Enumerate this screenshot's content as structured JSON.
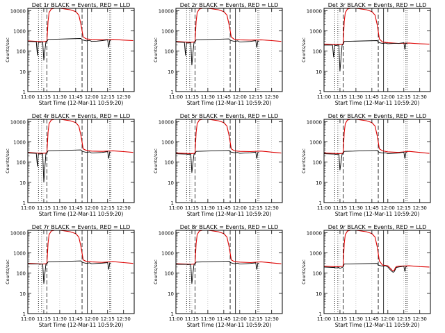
{
  "figure": {
    "common": {
      "title_mid": "BLACK = Events, RED = LLD",
      "xlabel": "Start Time (12-Mar-11 10:59:20)",
      "ylabel": "Counts/sec",
      "x_ticks": [
        "11:00",
        "11:15",
        "11:30",
        "11:45",
        "12:00",
        "12:15",
        "12:30"
      ],
      "x_tick_minutes": [
        0,
        15,
        30,
        45,
        60,
        75,
        90
      ],
      "y_ticks": [
        "1",
        "10",
        "100",
        "1000",
        "10000"
      ],
      "y_tick_values": [
        1,
        10,
        100,
        1000,
        10000
      ],
      "xlim_minutes": [
        0,
        100
      ],
      "ylim": [
        1,
        13000
      ],
      "y_scale": "log",
      "vlines": [
        {
          "minute": 10,
          "style": "dotted"
        },
        {
          "minute": 13,
          "style": "dotted"
        },
        {
          "minute": 18,
          "style": "dashed"
        },
        {
          "minute": 51,
          "style": "dashed"
        },
        {
          "minute": 56,
          "style": "solid"
        },
        {
          "minute": 77,
          "style": "dotted"
        },
        {
          "minute": 78,
          "style": "dotted"
        }
      ],
      "colors": {
        "events": "#000000",
        "lld": "#dd0000",
        "frame": "#000000"
      }
    }
  },
  "chart_data": [
    {
      "type": "line",
      "detector": "Det 1r",
      "title": "Det 1r BLACK = Events, RED = LLD",
      "series": [
        {
          "name": "LLD",
          "color": "#dd0000",
          "x": [
            0,
            8,
            14,
            17,
            18,
            19,
            20,
            22,
            25,
            30,
            33,
            35,
            40,
            45,
            48,
            50,
            52,
            55,
            60,
            70,
            80,
            90,
            99
          ],
          "y": [
            320,
            300,
            290,
            300,
            320,
            3000,
            8000,
            12000,
            13000,
            13000,
            12500,
            12000,
            11000,
            9000,
            6000,
            2000,
            500,
            400,
            380,
            360,
            380,
            350,
            330
          ]
        },
        {
          "name": "Events",
          "color": "#000000",
          "x": [
            0,
            8,
            9,
            10,
            11,
            14,
            15,
            17,
            18,
            19,
            50,
            51,
            52,
            55,
            58,
            60,
            65,
            70,
            75,
            76,
            77,
            78
          ],
          "y": [
            300,
            290,
            60,
            280,
            270,
            280,
            35,
            290,
            300,
            380,
            420,
            370,
            350,
            320,
            340,
            300,
            310,
            330,
            360,
            150,
            340,
            330
          ]
        }
      ]
    },
    {
      "type": "line",
      "detector": "Det 2r",
      "title": "Det 2r BLACK = Events, RED = LLD",
      "series": [
        {
          "name": "LLD",
          "color": "#dd0000",
          "x": [
            0,
            8,
            14,
            17,
            18,
            19,
            20,
            22,
            25,
            30,
            33,
            35,
            40,
            45,
            48,
            50,
            52,
            55,
            60,
            70,
            80,
            90,
            99
          ],
          "y": [
            300,
            280,
            270,
            280,
            300,
            3000,
            8000,
            12000,
            13000,
            13000,
            12500,
            12000,
            11000,
            9000,
            6000,
            2000,
            500,
            380,
            360,
            350,
            360,
            330,
            300
          ]
        },
        {
          "name": "Events",
          "color": "#000000",
          "x": [
            0,
            8,
            9,
            10,
            11,
            14,
            15,
            17,
            18,
            19,
            50,
            51,
            52,
            55,
            58,
            60,
            65,
            70,
            75,
            76,
            77,
            78
          ],
          "y": [
            280,
            270,
            60,
            260,
            250,
            260,
            20,
            270,
            280,
            360,
            400,
            350,
            330,
            300,
            320,
            280,
            290,
            300,
            330,
            150,
            320,
            300
          ]
        }
      ]
    },
    {
      "type": "line",
      "detector": "Det 3r",
      "title": "Det 3r BLACK = Events, RED = LLD",
      "series": [
        {
          "name": "LLD",
          "color": "#dd0000",
          "x": [
            0,
            8,
            14,
            17,
            18,
            19,
            20,
            22,
            25,
            30,
            33,
            35,
            40,
            45,
            48,
            50,
            52,
            55,
            60,
            70,
            80,
            90,
            99
          ],
          "y": [
            220,
            210,
            210,
            215,
            230,
            3000,
            8000,
            12000,
            13000,
            13000,
            12500,
            12000,
            11000,
            9000,
            6000,
            2000,
            400,
            280,
            260,
            240,
            250,
            230,
            220
          ]
        },
        {
          "name": "Events",
          "color": "#000000",
          "x": [
            0,
            8,
            9,
            10,
            11,
            14,
            15,
            17,
            18,
            19,
            50,
            51,
            52,
            55,
            58,
            60,
            65,
            70,
            75,
            76,
            77,
            78
          ],
          "y": [
            200,
            200,
            50,
            200,
            190,
            200,
            10,
            200,
            210,
            300,
            330,
            280,
            260,
            240,
            250,
            230,
            240,
            240,
            260,
            120,
            250,
            240
          ]
        }
      ]
    },
    {
      "type": "line",
      "detector": "Det 4r",
      "title": "Det 4r BLACK = Events, RED = LLD",
      "series": [
        {
          "name": "LLD",
          "color": "#dd0000",
          "x": [
            0,
            8,
            14,
            17,
            18,
            19,
            20,
            22,
            25,
            30,
            33,
            35,
            40,
            45,
            48,
            50,
            52,
            55,
            60,
            70,
            80,
            90,
            99
          ],
          "y": [
            300,
            280,
            270,
            280,
            300,
            3000,
            8000,
            12000,
            13000,
            13000,
            12500,
            12000,
            11000,
            9000,
            6000,
            2000,
            450,
            380,
            350,
            340,
            360,
            330,
            300
          ]
        },
        {
          "name": "Events",
          "color": "#000000",
          "x": [
            0,
            8,
            9,
            10,
            11,
            14,
            15,
            17,
            18,
            19,
            50,
            51,
            52,
            55,
            58,
            60,
            65,
            70,
            75,
            76,
            77,
            78
          ],
          "y": [
            280,
            270,
            60,
            260,
            250,
            260,
            10,
            270,
            280,
            360,
            400,
            350,
            330,
            300,
            320,
            280,
            290,
            300,
            330,
            150,
            320,
            300
          ]
        }
      ]
    },
    {
      "type": "line",
      "detector": "Det 5r",
      "title": "Det 5r BLACK = Events, RED = LLD",
      "series": [
        {
          "name": "LLD",
          "color": "#dd0000",
          "x": [
            0,
            8,
            14,
            17,
            18,
            19,
            20,
            22,
            25,
            30,
            33,
            35,
            40,
            45,
            48,
            50,
            52,
            55,
            60,
            70,
            80,
            90,
            99
          ],
          "y": [
            280,
            270,
            260,
            270,
            290,
            3000,
            8000,
            12000,
            13000,
            13000,
            12500,
            12000,
            11000,
            9000,
            6000,
            2000,
            450,
            360,
            340,
            330,
            350,
            310,
            280
          ]
        },
        {
          "name": "Events",
          "color": "#000000",
          "x": [
            0,
            8,
            9,
            10,
            11,
            14,
            15,
            17,
            18,
            19,
            50,
            51,
            52,
            55,
            58,
            60,
            65,
            70,
            75,
            76,
            77,
            78
          ],
          "y": [
            260,
            250,
            250,
            250,
            240,
            250,
            30,
            250,
            260,
            340,
            380,
            330,
            310,
            290,
            300,
            270,
            280,
            290,
            310,
            150,
            300,
            290
          ]
        }
      ]
    },
    {
      "type": "line",
      "detector": "Det 6r",
      "title": "Det 6r BLACK = Events, RED = LLD",
      "series": [
        {
          "name": "LLD",
          "color": "#dd0000",
          "x": [
            0,
            8,
            14,
            17,
            18,
            19,
            20,
            22,
            25,
            30,
            33,
            35,
            40,
            45,
            48,
            50,
            52,
            55,
            60,
            70,
            80,
            90,
            99
          ],
          "y": [
            280,
            270,
            260,
            270,
            290,
            3000,
            8000,
            12000,
            13000,
            13000,
            12500,
            12000,
            11000,
            9000,
            6000,
            2000,
            450,
            360,
            320,
            300,
            340,
            300,
            270
          ]
        },
        {
          "name": "Events",
          "color": "#000000",
          "x": [
            0,
            8,
            9,
            10,
            11,
            14,
            15,
            17,
            18,
            19,
            50,
            51,
            52,
            55,
            58,
            60,
            65,
            70,
            75,
            76,
            77,
            78
          ],
          "y": [
            260,
            250,
            250,
            250,
            240,
            250,
            40,
            250,
            260,
            340,
            380,
            330,
            300,
            280,
            290,
            260,
            270,
            280,
            310,
            150,
            300,
            290
          ]
        }
      ]
    },
    {
      "type": "line",
      "detector": "Det 7r",
      "title": "Det 7r BLACK = Events, RED = LLD",
      "series": [
        {
          "name": "LLD",
          "color": "#dd0000",
          "x": [
            0,
            8,
            14,
            17,
            18,
            19,
            20,
            22,
            25,
            30,
            33,
            35,
            40,
            45,
            48,
            50,
            52,
            55,
            60,
            70,
            80,
            90,
            99
          ],
          "y": [
            300,
            290,
            280,
            290,
            310,
            3000,
            8000,
            12000,
            13000,
            13000,
            12500,
            12000,
            11000,
            9000,
            6000,
            2000,
            450,
            380,
            360,
            340,
            370,
            330,
            300
          ]
        },
        {
          "name": "Events",
          "color": "#000000",
          "x": [
            0,
            8,
            9,
            10,
            11,
            14,
            15,
            17,
            18,
            19,
            50,
            51,
            52,
            55,
            58,
            60,
            65,
            70,
            75,
            76,
            77,
            78
          ],
          "y": [
            280,
            280,
            280,
            280,
            270,
            280,
            30,
            280,
            290,
            360,
            400,
            350,
            330,
            300,
            320,
            290,
            300,
            310,
            330,
            150,
            320,
            300
          ]
        }
      ]
    },
    {
      "type": "line",
      "detector": "Det 8r",
      "title": "Det 8r BLACK = Events, RED = LLD",
      "series": [
        {
          "name": "LLD",
          "color": "#dd0000",
          "x": [
            0,
            8,
            14,
            17,
            18,
            19,
            20,
            22,
            25,
            30,
            33,
            35,
            40,
            45,
            48,
            50,
            52,
            55,
            60,
            70,
            80,
            90,
            99
          ],
          "y": [
            290,
            280,
            270,
            280,
            300,
            3000,
            8000,
            12000,
            13000,
            13000,
            12500,
            12000,
            11000,
            9000,
            6000,
            2000,
            450,
            370,
            350,
            330,
            360,
            320,
            290
          ]
        },
        {
          "name": "Events",
          "color": "#000000",
          "x": [
            0,
            8,
            9,
            10,
            11,
            14,
            15,
            17,
            18,
            19,
            50,
            51,
            52,
            55,
            58,
            60,
            65,
            70,
            75,
            76,
            77,
            78
          ],
          "y": [
            270,
            270,
            270,
            270,
            260,
            270,
            30,
            270,
            280,
            350,
            390,
            340,
            320,
            290,
            310,
            280,
            290,
            300,
            320,
            150,
            310,
            290
          ]
        }
      ]
    },
    {
      "type": "line",
      "detector": "Det 9r",
      "title": "Det 9r BLACK = Events, RED = LLD",
      "series": [
        {
          "name": "LLD",
          "color": "#dd0000",
          "x": [
            0,
            8,
            14,
            17,
            18,
            19,
            20,
            22,
            25,
            30,
            33,
            35,
            40,
            45,
            48,
            50,
            52,
            55,
            60,
            62,
            64,
            65,
            66,
            67,
            68,
            70,
            80,
            90,
            99
          ],
          "y": [
            220,
            210,
            210,
            215,
            230,
            3000,
            8000,
            12000,
            13000,
            13000,
            12500,
            12000,
            11000,
            9000,
            6000,
            2000,
            400,
            250,
            230,
            180,
            140,
            130,
            140,
            180,
            210,
            220,
            230,
            210,
            200
          ]
        },
        {
          "name": "Events",
          "color": "#000000",
          "x": [
            0,
            8,
            9,
            10,
            11,
            14,
            15,
            17,
            18,
            19,
            50,
            51,
            52,
            55,
            58,
            60,
            62,
            64,
            65,
            66,
            67,
            68,
            70,
            75,
            76,
            77,
            78
          ],
          "y": [
            200,
            190,
            190,
            190,
            180,
            190,
            170,
            190,
            200,
            280,
            300,
            250,
            240,
            220,
            230,
            200,
            150,
            120,
            110,
            120,
            150,
            190,
            200,
            220,
            120,
            210,
            200
          ]
        }
      ]
    }
  ]
}
